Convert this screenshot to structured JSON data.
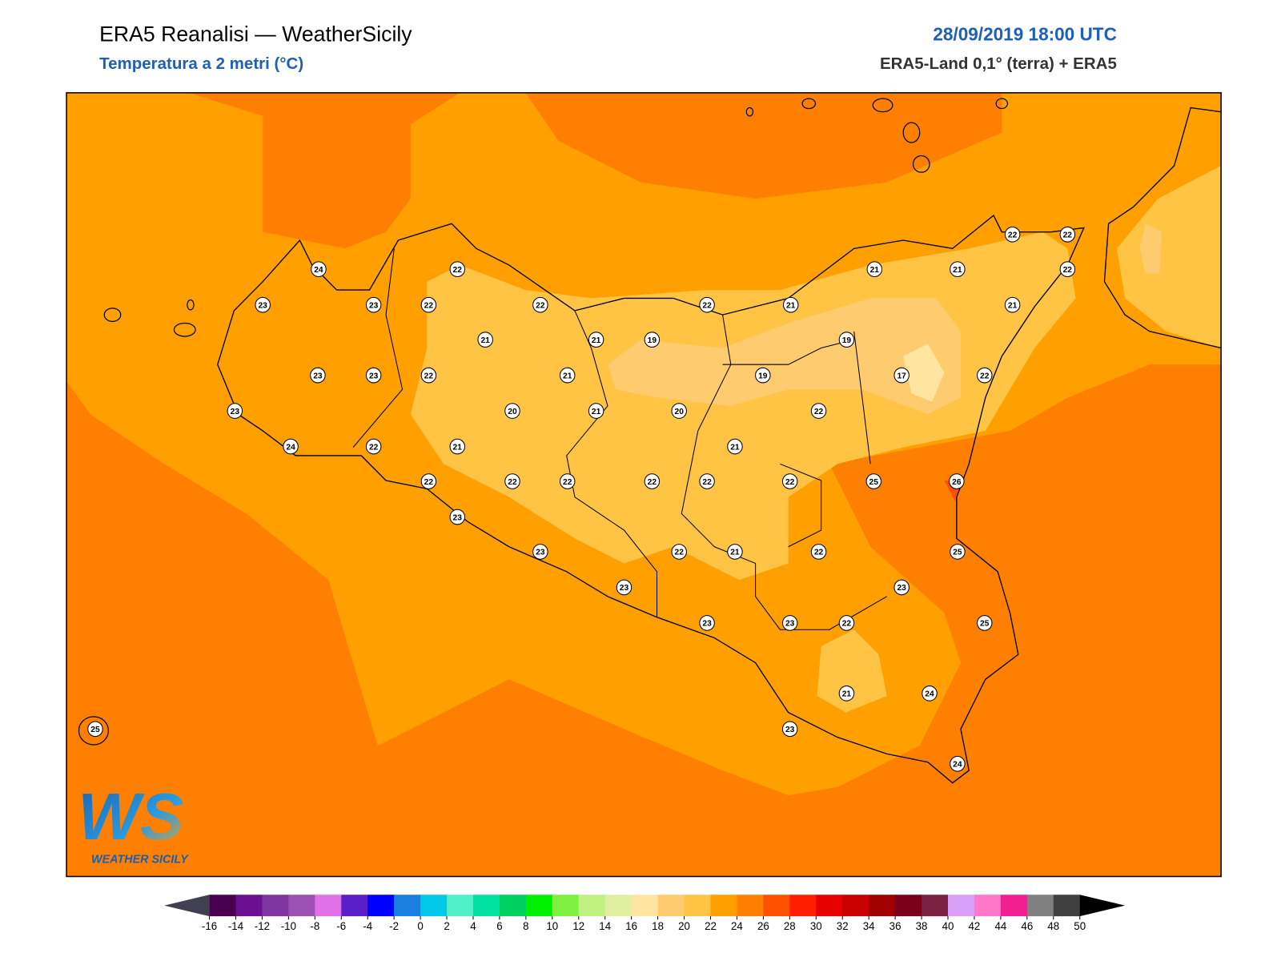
{
  "header": {
    "title": "ERA5 Reanalisi — WeatherSicily",
    "subtitle": "Temperatura a 2 metri (°C)",
    "datetime": "28/09/2019 18:00 UTC",
    "source": "ERA5-Land 0,1° (terra) + ERA5"
  },
  "logo": {
    "mark": "WS",
    "text": "WEATHER SICILY"
  },
  "stations": [
    24,
    23,
    23,
    22,
    22,
    22,
    21,
    21,
    19,
    22,
    21,
    21,
    21,
    22,
    22,
    22,
    21,
    19,
    19,
    17,
    22,
    23,
    23,
    22,
    21,
    23,
    20,
    21,
    20,
    22,
    24,
    22,
    21,
    21,
    22,
    22,
    22,
    22,
    22,
    22,
    25,
    26,
    23,
    23,
    22,
    21,
    22,
    25,
    23,
    23,
    23,
    23,
    22,
    25,
    21,
    24,
    23,
    24,
    25
  ],
  "colorbar": {
    "ticks": [
      -16,
      -14,
      -12,
      -10,
      -8,
      -6,
      -4,
      -2,
      0,
      2,
      4,
      6,
      8,
      10,
      12,
      14,
      16,
      18,
      20,
      22,
      24,
      26,
      28,
      30,
      32,
      34,
      36,
      38,
      40,
      42,
      44,
      46,
      48,
      50
    ],
    "colors": [
      "#4b004f",
      "#6b1090",
      "#7f359f",
      "#9c50b4",
      "#e070e8",
      "#5b1fc8",
      "#0000ff",
      "#1a80e0",
      "#00c8e8",
      "#50f0c8",
      "#00e0a0",
      "#00d060",
      "#00f000",
      "#80f040",
      "#c0f080",
      "#e0f0a0",
      "#ffe5a0",
      "#ffcb6f",
      "#ffc444",
      "#ffa000",
      "#ff8000",
      "#ff5000",
      "#ff1e00",
      "#e60000",
      "#c80000",
      "#a00000",
      "#780018",
      "#7a2040",
      "#d8a0f8",
      "#ff78c8",
      "#f02090",
      "#808080",
      "#404040"
    ],
    "under": "#404050",
    "over": "#000000"
  }
}
